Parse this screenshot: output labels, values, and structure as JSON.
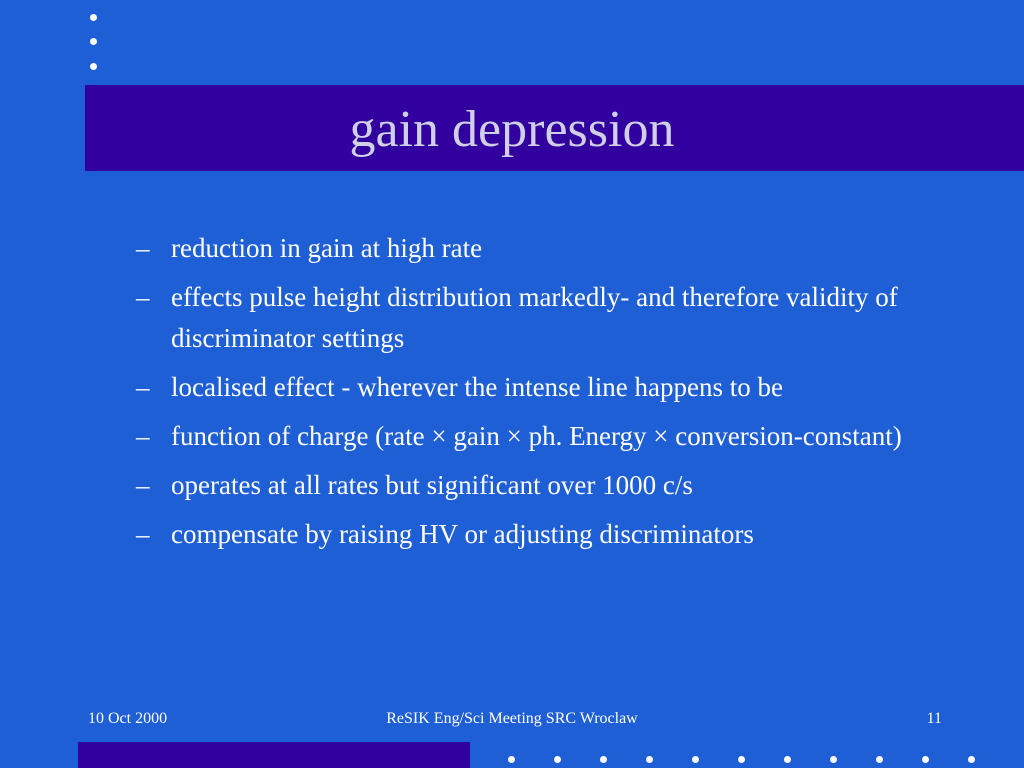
{
  "slide": {
    "title": "gain depression",
    "bullets": [
      {
        "dash": "–",
        "text": "reduction in gain at high rate"
      },
      {
        "dash": "–",
        "text": "effects pulse height distribution markedly- and therefore validity of discriminator settings"
      },
      {
        "dash": "–",
        "text": "localised effect - wherever the intense line happens to be"
      },
      {
        "dash": "–",
        "text": "function of charge (rate × gain × ph. Energy × conversion-constant)"
      },
      {
        "dash": "–",
        "text": "operates at all rates but significant over 1000 c/s"
      },
      {
        "dash": "–",
        "text": "compensate by raising HV or adjusting discriminators"
      }
    ]
  },
  "footer": {
    "date": "10 Oct 2000",
    "meeting": "ReSIK Eng/Sci Meeting SRC Wroclaw",
    "page_number": "11"
  },
  "colors": {
    "background": "#1f5fd6",
    "band": "#3300a0",
    "title_text": "#cfcfe6",
    "body_text": "#ffffff"
  }
}
